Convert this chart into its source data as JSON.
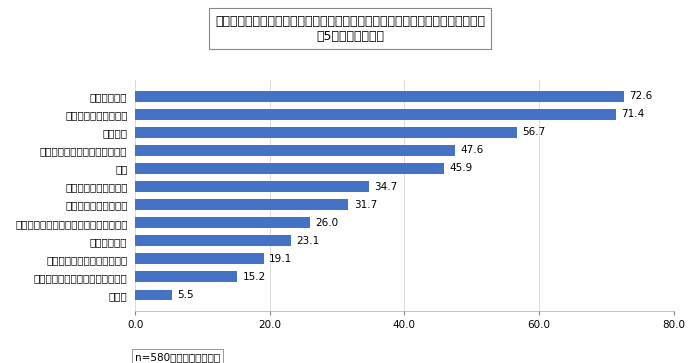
{
  "title_line1": "学校の勉強以外に、小学生の頃にやっておいた方がよいと思うことは何ですか。",
  "title_line2": "（5つまで選択））",
  "categories": [
    "その他",
    "コンピューターのプログラミング",
    "新聞、ニュース番組に触れる",
    "ボランティア",
    "海外に行く（旅行、ホームスティなど）",
    "音楽・美術などの芸術",
    "英語（英会話）を学ぶ",
    "読書",
    "家の手伝い（料理・掃除など）",
    "スポーツ",
    "自然・生物と触れ合う",
    "友だちと遊ぶ"
  ],
  "values": [
    5.5,
    15.2,
    19.1,
    23.1,
    26.0,
    31.7,
    34.7,
    45.9,
    47.6,
    56.7,
    71.4,
    72.6
  ],
  "bar_color": "#4472C4",
  "xlim": [
    0,
    80
  ],
  "xticks": [
    0.0,
    20.0,
    40.0,
    60.0,
    80.0
  ],
  "footnote": "n=580（無回答と除く）",
  "value_fontsize": 7.5,
  "label_fontsize": 7.5,
  "tick_fontsize": 7.5,
  "title_fontsize": 9,
  "footnote_fontsize": 7.5
}
